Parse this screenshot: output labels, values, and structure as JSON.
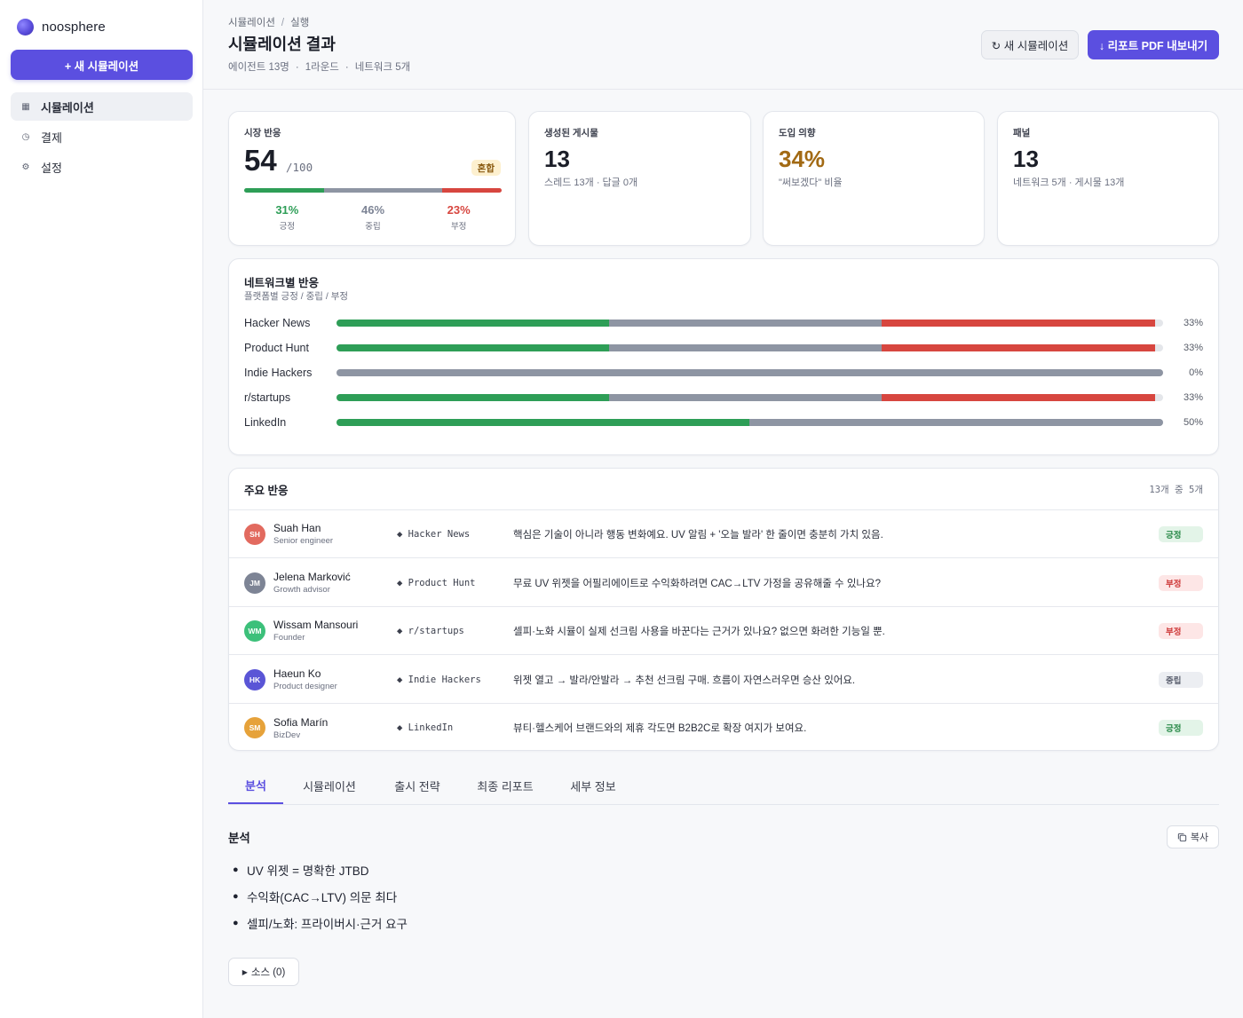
{
  "brand": {
    "name": "noosphere"
  },
  "sidebar": {
    "new_button": "+ 새 시뮬레이션",
    "items": [
      {
        "label": "시뮬레이션",
        "icon": "grid-icon"
      },
      {
        "label": "결제",
        "icon": "clock-icon"
      },
      {
        "label": "설정",
        "icon": "gear-icon"
      }
    ]
  },
  "header": {
    "breadcrumb": [
      "시뮬레이션",
      "실행"
    ],
    "breadcrumb_sep": "/",
    "title": "시뮬레이션 결과",
    "meta": [
      "에이전트 13명",
      "1라운드",
      "네트워크 5개"
    ],
    "meta_sep": "·",
    "new_sim_button": "↻ 새 시뮬레이션",
    "export_button": "↓ 리포트 PDF 내보내기"
  },
  "colors": {
    "accent": "#5b4fe0",
    "positive": "#2e9e57",
    "neutral": "#8e95a3",
    "negative": "#d7463f",
    "intent": "#a26a14"
  },
  "market": {
    "label": "시장 반응",
    "score": "54",
    "denom": "/100",
    "badge": "혼합",
    "positive_pct": "31%",
    "positive_label": "긍정",
    "neutral_pct": "46%",
    "neutral_label": "중립",
    "negative_pct": "23%",
    "negative_label": "부정",
    "split": [
      31,
      46,
      23
    ]
  },
  "posts": {
    "label": "생성된 게시물",
    "value": "13",
    "sub": "스레드 13개 · 답글 0개"
  },
  "intent": {
    "label": "도입 의향",
    "value": "34%",
    "sub": "\"써보겠다\" 비율"
  },
  "panel": {
    "label": "패널",
    "value": "13",
    "sub": "네트워크 5개 · 게시물 13개"
  },
  "network": {
    "title": "네트워크별 반응",
    "subtitle": "플랫폼별 긍정 / 중립 / 부정",
    "rows": [
      {
        "name": "Hacker News",
        "pos": 33,
        "neu": 33,
        "neg": 33,
        "label": "33%"
      },
      {
        "name": "Product Hunt",
        "pos": 33,
        "neu": 33,
        "neg": 33,
        "label": "33%"
      },
      {
        "name": "Indie Hackers",
        "pos": 0,
        "neu": 100,
        "neg": 0,
        "label": "0%"
      },
      {
        "name": "r/startups",
        "pos": 33,
        "neu": 33,
        "neg": 33,
        "label": "33%"
      },
      {
        "name": "LinkedIn",
        "pos": 50,
        "neu": 50,
        "neg": 0,
        "label": "50%"
      }
    ]
  },
  "reactions": {
    "title": "주요 반응",
    "count": "13개 중 5개",
    "rows": [
      {
        "initials": "SH",
        "color": "#e26a5f",
        "name": "Suah Han",
        "role": "Senior engineer",
        "network": "◆ Hacker News",
        "quote": "핵심은 기술이 아니라 행동 변화예요. UV 알림 + '오늘 발라' 한 줄이면 충분히 가치 있음.",
        "sentiment": "긍정",
        "tone": "pos"
      },
      {
        "initials": "JM",
        "color": "#7d8495",
        "name": "Jelena Marković",
        "role": "Growth advisor",
        "network": "◆ Product Hunt",
        "quote": "무료 UV 위젯을 어필리에이트로 수익화하려면 CAC→LTV 가정을 공유해줄 수 있나요?",
        "sentiment": "부정",
        "tone": "neg"
      },
      {
        "initials": "WM",
        "color": "#3cc07a",
        "name": "Wissam Mansouri",
        "role": "Founder",
        "network": "◆ r/startups",
        "quote": "셀피·노화 시뮬이 실제 선크림 사용을 바꾼다는 근거가 있나요? 없으면 화려한 기능일 뿐.",
        "sentiment": "부정",
        "tone": "neg"
      },
      {
        "initials": "HK",
        "color": "#5a55d6",
        "name": "Haeun Ko",
        "role": "Product designer",
        "network": "◆ Indie Hackers",
        "quote": "위젯 열고 → 발라/안발라 → 추천 선크림 구매. 흐름이 자연스러우면 승산 있어요.",
        "sentiment": "중립",
        "tone": "neu"
      },
      {
        "initials": "SM",
        "color": "#e6a23a",
        "name": "Sofia Marín",
        "role": "BizDev",
        "network": "◆ LinkedIn",
        "quote": "뷰티·헬스케어 브랜드와의 제휴 각도면 B2B2C로 확장 여지가 보여요.",
        "sentiment": "긍정",
        "tone": "pos"
      }
    ]
  },
  "tabs": [
    "분석",
    "시뮬레이션",
    "출시 전략",
    "최종 리포트",
    "세부 정보"
  ],
  "analysis": {
    "title": "분석",
    "copy_button": "복사",
    "bullets": [
      "UV 위젯 = 명확한 JTBD",
      "수익화(CAC→LTV) 의문 최다",
      "셀피/노화: 프라이버시·근거 요구"
    ],
    "sources_button": "소스 (0)"
  }
}
